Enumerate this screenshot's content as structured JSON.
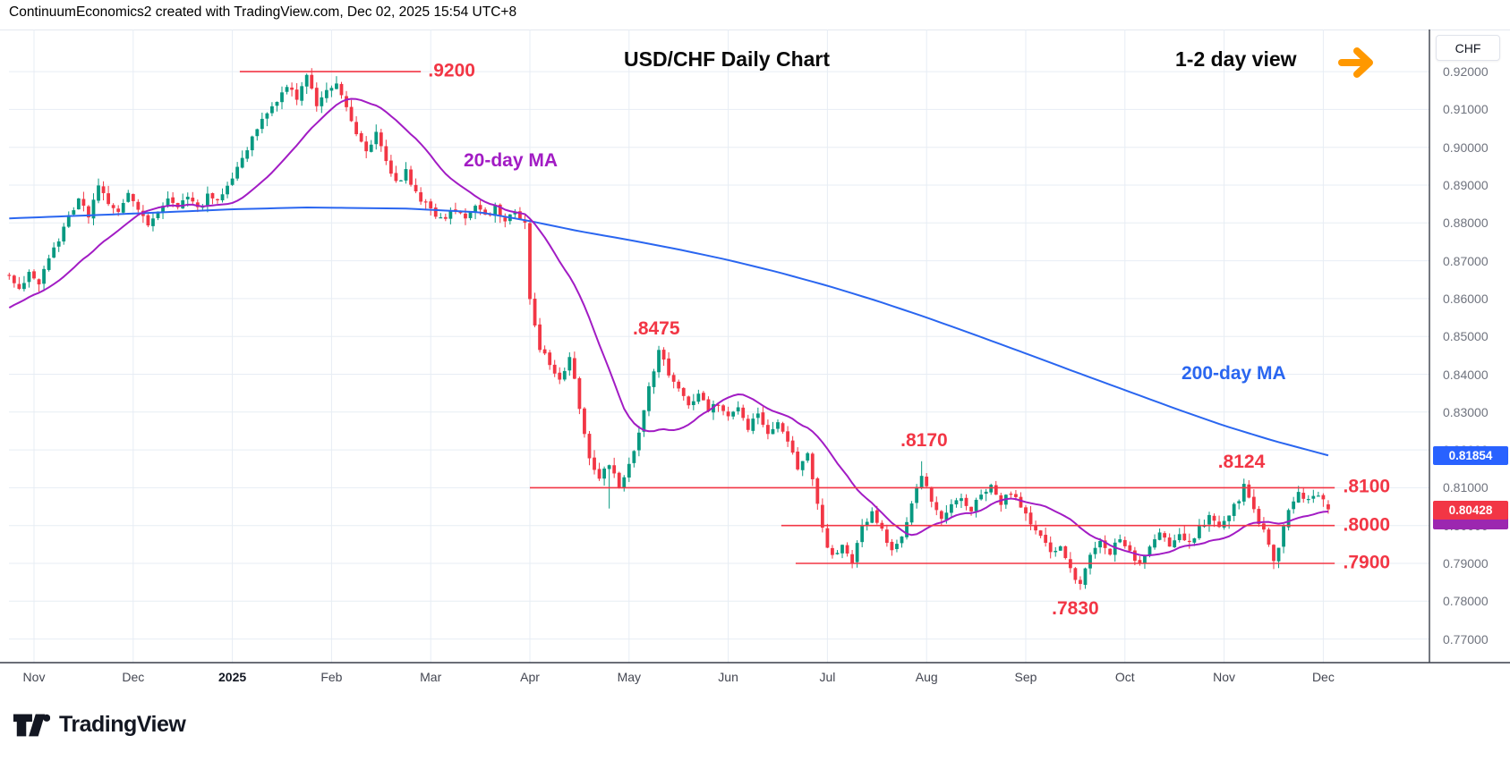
{
  "header": {
    "credit": "ContinuumEconomics2 created with TradingView.com, Dec 02, 2025 15:54 UTC+8"
  },
  "titles": {
    "main": "USD/CHF Daily Chart",
    "view_note": "1-2 day view"
  },
  "symbol_badge": {
    "label": "CHF"
  },
  "price_badges": {
    "ma200_value": "0.81854",
    "last_value": "0.80428"
  },
  "ma_labels": {
    "ma20": "20-day MA",
    "ma200": "200-day MA"
  },
  "logo": {
    "brand": "TradingView"
  },
  "colors": {
    "up": "#089981",
    "down": "#f23645",
    "ma20": "#a21cc4",
    "ma200": "#2a66f0",
    "level": "#f23645",
    "annotation": "#f23645",
    "arrow": "#ff9800",
    "grid": "#e7edf4",
    "axis_line": "#3a3e4a",
    "badge_ma200_bg": "#2962ff",
    "badge_last_bg": "#f23645",
    "badge_ma20_bg": "#9c27b0"
  },
  "chart_data": {
    "type": "candlestick",
    "symbol": "USD/CHF",
    "timeframe": "Daily",
    "title": "USD/CHF Daily Chart",
    "y_axis": {
      "ticks": [
        "0.92000",
        "0.91000",
        "0.90000",
        "0.89000",
        "0.88000",
        "0.87000",
        "0.86000",
        "0.85000",
        "0.84000",
        "0.83000",
        "0.82000",
        "0.81000",
        "0.80000",
        "0.79000",
        "0.78000",
        "0.77000"
      ],
      "min": 0.77,
      "max": 0.92
    },
    "x_axis": {
      "labels": [
        "Nov",
        "Dec",
        "2025",
        "Feb",
        "Mar",
        "Apr",
        "May",
        "Jun",
        "Jul",
        "Aug",
        "Sep",
        "Oct",
        "Nov",
        "Dec"
      ],
      "candles_per_month": 20
    },
    "last_close": 0.80428,
    "ma200_last": 0.81854,
    "candle_count": 267,
    "seed": 20251202,
    "ma20_window": 20,
    "ma20_prehistory_step": 0.0009,
    "price_path_anchors": [
      [
        0,
        0.8665
      ],
      [
        2,
        0.863
      ],
      [
        4,
        0.8668
      ],
      [
        6,
        0.864
      ],
      [
        8,
        0.87
      ],
      [
        10,
        0.876
      ],
      [
        12,
        0.8825
      ],
      [
        14,
        0.8858
      ],
      [
        16,
        0.882
      ],
      [
        18,
        0.889
      ],
      [
        20,
        0.8855
      ],
      [
        22,
        0.883
      ],
      [
        24,
        0.888
      ],
      [
        26,
        0.883
      ],
      [
        28,
        0.879
      ],
      [
        30,
        0.883
      ],
      [
        32,
        0.8868
      ],
      [
        34,
        0.884
      ],
      [
        36,
        0.8862
      ],
      [
        38,
        0.8835
      ],
      [
        40,
        0.887
      ],
      [
        42,
        0.8855
      ],
      [
        44,
        0.889
      ],
      [
        46,
        0.894
      ],
      [
        48,
        0.8995
      ],
      [
        50,
        0.9045
      ],
      [
        52,
        0.909
      ],
      [
        54,
        0.9125
      ],
      [
        56,
        0.916
      ],
      [
        58,
        0.913
      ],
      [
        60,
        0.9185
      ],
      [
        62,
        0.9115
      ],
      [
        64,
        0.9145
      ],
      [
        66,
        0.9175
      ],
      [
        68,
        0.91
      ],
      [
        70,
        0.903
      ],
      [
        72,
        0.899
      ],
      [
        74,
        0.9035
      ],
      [
        76,
        0.896
      ],
      [
        78,
        0.8905
      ],
      [
        80,
        0.8935
      ],
      [
        82,
        0.888
      ],
      [
        84,
        0.885
      ],
      [
        86,
        0.882
      ],
      [
        88,
        0.8812
      ],
      [
        90,
        0.8838
      ],
      [
        92,
        0.8812
      ],
      [
        94,
        0.8842
      ],
      [
        96,
        0.8818
      ],
      [
        98,
        0.8838
      ],
      [
        100,
        0.8812
      ],
      [
        102,
        0.8828
      ],
      [
        104,
        0.8802
      ],
      [
        105,
        0.859
      ],
      [
        107,
        0.847
      ],
      [
        109,
        0.843
      ],
      [
        111,
        0.838
      ],
      [
        113,
        0.845
      ],
      [
        115,
        0.831
      ],
      [
        117,
        0.818
      ],
      [
        119,
        0.8125
      ],
      [
        121,
        0.8165
      ],
      [
        123,
        0.811
      ],
      [
        125,
        0.8155
      ],
      [
        127,
        0.824
      ],
      [
        129,
        0.836
      ],
      [
        131,
        0.8462
      ],
      [
        133,
        0.8405
      ],
      [
        135,
        0.836
      ],
      [
        137,
        0.8315
      ],
      [
        139,
        0.8345
      ],
      [
        141,
        0.83
      ],
      [
        143,
        0.8325
      ],
      [
        145,
        0.8285
      ],
      [
        147,
        0.831
      ],
      [
        149,
        0.826
      ],
      [
        151,
        0.829
      ],
      [
        153,
        0.824
      ],
      [
        155,
        0.8268
      ],
      [
        157,
        0.822
      ],
      [
        159,
        0.815
      ],
      [
        161,
        0.819
      ],
      [
        162,
        0.812
      ],
      [
        163,
        0.806
      ],
      [
        164,
        0.8
      ],
      [
        165,
        0.795
      ],
      [
        166,
        0.7915
      ],
      [
        168,
        0.7945
      ],
      [
        170,
        0.7905
      ],
      [
        172,
        0.7995
      ],
      [
        174,
        0.803
      ],
      [
        176,
        0.7985
      ],
      [
        178,
        0.793
      ],
      [
        180,
        0.7965
      ],
      [
        182,
        0.806
      ],
      [
        184,
        0.8135
      ],
      [
        186,
        0.806
      ],
      [
        188,
        0.8015
      ],
      [
        190,
        0.805
      ],
      [
        192,
        0.807
      ],
      [
        194,
        0.804
      ],
      [
        196,
        0.808
      ],
      [
        198,
        0.8105
      ],
      [
        200,
        0.806
      ],
      [
        202,
        0.809
      ],
      [
        204,
        0.805
      ],
      [
        206,
        0.8
      ],
      [
        208,
        0.7965
      ],
      [
        210,
        0.793
      ],
      [
        212,
        0.795
      ],
      [
        214,
        0.789
      ],
      [
        216,
        0.7838
      ],
      [
        218,
        0.7925
      ],
      [
        220,
        0.7962
      ],
      [
        222,
        0.7932
      ],
      [
        224,
        0.7962
      ],
      [
        226,
        0.7928
      ],
      [
        228,
        0.79
      ],
      [
        230,
        0.7945
      ],
      [
        232,
        0.7975
      ],
      [
        234,
        0.7948
      ],
      [
        236,
        0.7985
      ],
      [
        238,
        0.7955
      ],
      [
        240,
        0.7992
      ],
      [
        242,
        0.8022
      ],
      [
        244,
        0.7992
      ],
      [
        246,
        0.8028
      ],
      [
        248,
        0.8072
      ],
      [
        249,
        0.8108
      ],
      [
        250,
        0.8082
      ],
      [
        252,
        0.8012
      ],
      [
        254,
        0.7952
      ],
      [
        255,
        0.7908
      ],
      [
        257,
        0.7992
      ],
      [
        259,
        0.8072
      ],
      [
        260,
        0.8092
      ],
      [
        262,
        0.8062
      ],
      [
        264,
        0.8078
      ],
      [
        266,
        0.8043
      ]
    ],
    "ma200_anchors": [
      [
        0,
        0.8812
      ],
      [
        20,
        0.8822
      ],
      [
        45,
        0.8836
      ],
      [
        60,
        0.8841
      ],
      [
        80,
        0.8838
      ],
      [
        95,
        0.8828
      ],
      [
        105,
        0.8805
      ],
      [
        115,
        0.8778
      ],
      [
        125,
        0.8755
      ],
      [
        135,
        0.873
      ],
      [
        145,
        0.8702
      ],
      [
        155,
        0.867
      ],
      [
        165,
        0.8634
      ],
      [
        175,
        0.8594
      ],
      [
        185,
        0.855
      ],
      [
        195,
        0.8503
      ],
      [
        205,
        0.8455
      ],
      [
        215,
        0.8406
      ],
      [
        225,
        0.8358
      ],
      [
        235,
        0.831
      ],
      [
        245,
        0.8264
      ],
      [
        255,
        0.8224
      ],
      [
        261,
        0.8203
      ],
      [
        266,
        0.81854
      ]
    ],
    "pinned_candles": {
      "60": {
        "h": 0.9195
      },
      "66": {
        "h": 0.9188
      },
      "121": {
        "l": 0.8045
      },
      "131": {
        "h": 0.8475
      },
      "184": {
        "h": 0.817
      },
      "216": {
        "l": 0.783
      },
      "249": {
        "h": 0.8124
      },
      "255": {
        "l": 0.7885
      },
      "266": {
        "o": 0.8056,
        "c": 0.80428
      }
    },
    "levels": [
      {
        "text": ".9200",
        "price": 0.92,
        "from_idx": 46.5,
        "to_idx": 83,
        "label_idx": 84.5
      },
      {
        "text": ".8100",
        "price": 0.81,
        "from_idx": 105,
        "to_idx": 267.3,
        "label_idx": 269
      },
      {
        "text": ".8000",
        "price": 0.8,
        "from_idx": 155.7,
        "to_idx": 267.3,
        "label_idx": 269
      },
      {
        "text": ".7900",
        "price": 0.79,
        "from_idx": 158.6,
        "to_idx": 267.3,
        "label_idx": 269
      }
    ],
    "free_labels": [
      {
        "text": ".8475",
        "price": 0.8519,
        "idx": 130.5
      },
      {
        "text": ".8170",
        "price": 0.8224,
        "idx": 184.5
      },
      {
        "text": ".8124",
        "price": 0.8167,
        "idx": 248.5
      },
      {
        "text": ".7830",
        "price": 0.7779,
        "idx": 215
      }
    ]
  }
}
